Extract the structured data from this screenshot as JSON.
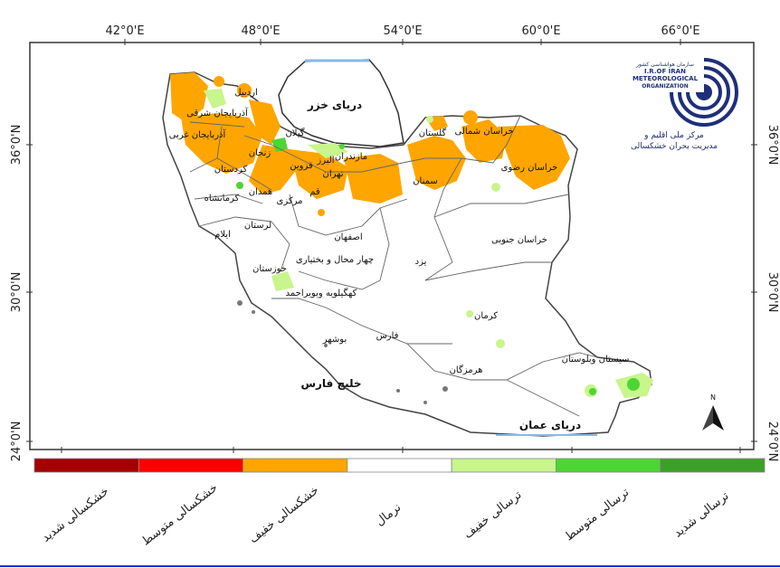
{
  "map": {
    "lon_ticks": [
      "42°0'E",
      "48°0'E",
      "54°0'E",
      "60°0'E",
      "66°0'E"
    ],
    "lat_ticks": [
      "36°0'N",
      "30°0'N",
      "24°0'N"
    ],
    "seas": {
      "caspian": "دریای خزر",
      "persian_gulf": "خلیج فارس",
      "oman": "دریای عمان"
    },
    "provinces": [
      "اردبیل",
      "آذربایجان شرقی",
      "آذربایجان غربی",
      "گیلان",
      "زنجان",
      "کردستان",
      "همدان",
      "کرمانشاه",
      "قزوین",
      "البرز",
      "مازندران",
      "تهران",
      "قم",
      "مرکزی",
      "لرستان",
      "ایلام",
      "گلستان",
      "خراسان شمالی",
      "خراسان رضوی",
      "سمنان",
      "اصفهان",
      "چهار محال و بختیاری",
      "یزد",
      "خراسان جنوبی",
      "خوزستان",
      "کهگیلویه وبویراحمد",
      "کرمان",
      "فارس",
      "بوشهر",
      "هرمزگان",
      "سیستان وبلوستان"
    ],
    "north_arrow": "N"
  },
  "logo": {
    "line1": "سازمان هواشناسی کشور",
    "line2": "I.R.OF IRAN",
    "line3": "METEOROLOGICAL",
    "line4": "ORGANIZATION",
    "caption1": "مرکز ملی اقلیم و",
    "caption2": "مدیریت بحران خشکسالی"
  },
  "legend": {
    "items": [
      {
        "label": "خشکسالی شدید",
        "color": "#a50000"
      },
      {
        "label": "خشکسالی متوسط",
        "color": "#ff0000"
      },
      {
        "label": "خشکسالی خفیف",
        "color": "#ffa500"
      },
      {
        "label": "نرمال",
        "color": "#ffffff"
      },
      {
        "label": "ترسالی خفیف",
        "color": "#c8f58c"
      },
      {
        "label": "ترسالی متوسط",
        "color": "#4cd633"
      },
      {
        "label": "ترسالی شدید",
        "color": "#3ca028"
      }
    ]
  }
}
